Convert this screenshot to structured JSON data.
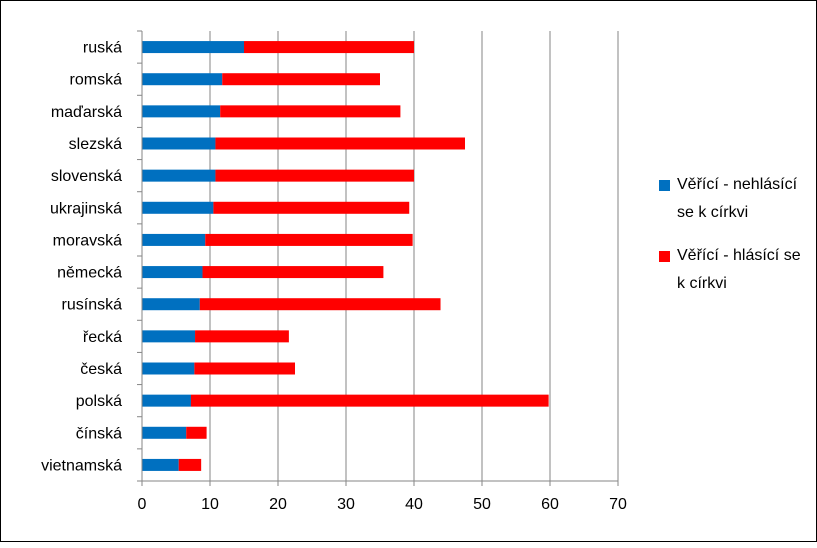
{
  "chart_data": {
    "type": "bar",
    "orientation": "horizontal",
    "stacked": true,
    "categories": [
      "ruská",
      "romská",
      "maďarská",
      "slezská",
      "slovenská",
      "ukrajinská",
      "moravská",
      "německá",
      "rusínská",
      "řecká",
      "česká",
      "polská",
      "čínská",
      "vietnamská"
    ],
    "series": [
      {
        "name": "Věřící - nehlásící se k církvi",
        "color": "#0070C0",
        "values": [
          15.0,
          11.8,
          11.5,
          10.8,
          10.8,
          10.5,
          9.3,
          8.9,
          8.5,
          7.8,
          7.7,
          7.2,
          6.5,
          5.4
        ]
      },
      {
        "name": "Věřící - hlásící se k církvi",
        "color": "#FF0000",
        "values": [
          25.0,
          23.2,
          26.5,
          36.7,
          29.2,
          28.8,
          30.5,
          26.6,
          35.4,
          13.8,
          14.8,
          52.6,
          3.0,
          3.3
        ]
      }
    ],
    "xlim": [
      0,
      70
    ],
    "xticks": [
      "0",
      "10",
      "20",
      "30",
      "40",
      "50",
      "60",
      "70"
    ],
    "grid": true,
    "legend_position": "right",
    "title": "",
    "xlabel": "",
    "ylabel": ""
  }
}
